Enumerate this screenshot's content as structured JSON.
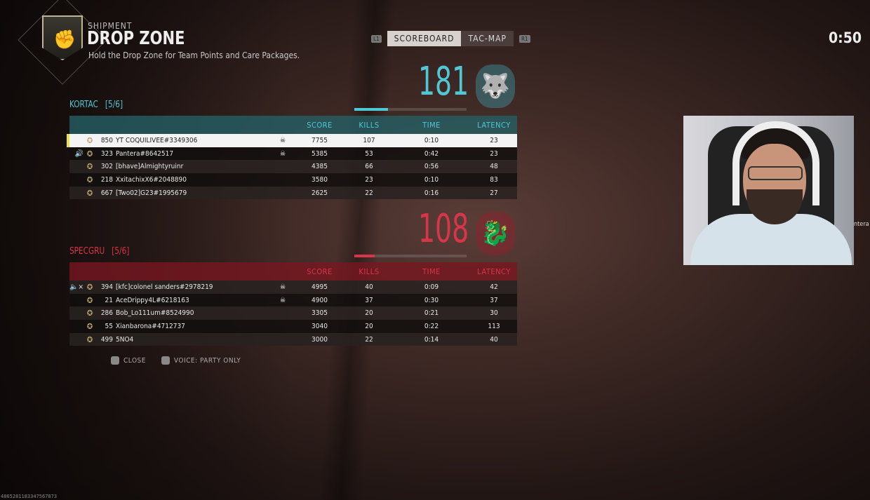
{
  "header": {
    "map": "SHIPMENT",
    "mode": "DROP ZONE",
    "description": "Hold the Drop Zone for Team Points and Care Packages.",
    "timer": "0:50"
  },
  "tabs": {
    "left_bumper": "L1",
    "right_bumper": "R1",
    "items": [
      {
        "label": "SCOREBOARD",
        "active": true
      },
      {
        "label": "TAC-MAP",
        "active": false
      }
    ]
  },
  "columns": {
    "score": "SCORE",
    "kills": "KILLS",
    "time": "TIME",
    "latency": "LATENCY"
  },
  "teams": [
    {
      "name": "KORTAC",
      "count": "[5/6]",
      "score": "181",
      "progress": 0.3,
      "color": "#4fc7d4",
      "players": [
        {
          "voice": "",
          "level": "850",
          "name": "YT COQUILIVEE#3349306",
          "skull": true,
          "score": "7755",
          "kills": "107",
          "time": "0:10",
          "latency": "23",
          "me": true
        },
        {
          "voice": "speaker",
          "level": "323",
          "name": "Pantera#8642517",
          "skull": true,
          "score": "5385",
          "kills": "53",
          "time": "0:42",
          "latency": "23"
        },
        {
          "voice": "",
          "level": "302",
          "name": "[bhave]Almightyruinr",
          "skull": false,
          "score": "4385",
          "kills": "66",
          "time": "0:56",
          "latency": "48"
        },
        {
          "voice": "",
          "level": "218",
          "name": "XxitachixX6#2048890",
          "skull": false,
          "score": "3580",
          "kills": "23",
          "time": "0:10",
          "latency": "83"
        },
        {
          "voice": "",
          "level": "667",
          "name": "[Two02]G23#1995679",
          "skull": false,
          "score": "2625",
          "kills": "22",
          "time": "0:16",
          "latency": "27"
        }
      ]
    },
    {
      "name": "SPECGRU",
      "count": "[5/6]",
      "score": "108",
      "progress": 0.18,
      "color": "#d8354a",
      "players": [
        {
          "voice": "muted",
          "level": "394",
          "name": "[kfc]colonel sanders#2978219",
          "skull": true,
          "score": "4995",
          "kills": "40",
          "time": "0:09",
          "latency": "42"
        },
        {
          "voice": "",
          "level": "21",
          "name": "AceDrippy4L#6218163",
          "skull": true,
          "score": "4900",
          "kills": "37",
          "time": "0:30",
          "latency": "37"
        },
        {
          "voice": "",
          "level": "286",
          "name": "Bob_Lo111um#8524990",
          "skull": false,
          "score": "3305",
          "kills": "20",
          "time": "0:21",
          "latency": "30"
        },
        {
          "voice": "",
          "level": "55",
          "name": "Xianbarona#4712737",
          "skull": false,
          "score": "3040",
          "kills": "20",
          "time": "0:22",
          "latency": "113"
        },
        {
          "voice": "",
          "level": "499",
          "name": "5NO4",
          "skull": false,
          "score": "3000",
          "kills": "22",
          "time": "0:14",
          "latency": "40"
        }
      ]
    }
  ],
  "footer": {
    "close": "CLOSE",
    "voice": "VOICE: PARTY ONLY"
  },
  "webcam": {
    "partial_label": "ntera"
  },
  "build_code": "4865281183347567873"
}
